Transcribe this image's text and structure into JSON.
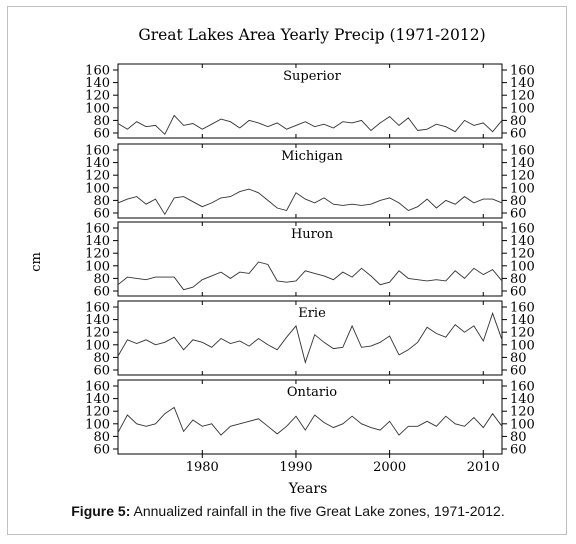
{
  "chart_data": {
    "type": "line",
    "title": "Great Lakes Area Yearly Precip (1971-2012)",
    "xlabel": "Years",
    "ylabel": "cm",
    "x_ticks": [
      1980,
      1990,
      2000,
      2010
    ],
    "xlim": [
      1971,
      2012
    ],
    "grid": false,
    "years": [
      1971,
      1972,
      1973,
      1974,
      1975,
      1976,
      1977,
      1978,
      1979,
      1980,
      1981,
      1982,
      1983,
      1984,
      1985,
      1986,
      1987,
      1988,
      1989,
      1990,
      1991,
      1992,
      1993,
      1994,
      1995,
      1996,
      1997,
      1998,
      1999,
      2000,
      2001,
      2002,
      2003,
      2004,
      2005,
      2006,
      2007,
      2008,
      2009,
      2010,
      2011,
      2012
    ],
    "panels": [
      {
        "name": "Superior",
        "ylim": [
          60,
          160
        ],
        "y_ticks": [
          60,
          80,
          100,
          120,
          140,
          160
        ],
        "values": [
          75,
          66,
          78,
          70,
          72,
          58,
          88,
          72,
          75,
          66,
          74,
          82,
          78,
          68,
          80,
          76,
          70,
          76,
          66,
          72,
          78,
          70,
          74,
          68,
          78,
          76,
          80,
          64,
          76,
          86,
          72,
          84,
          64,
          66,
          74,
          70,
          62,
          80,
          72,
          76,
          62,
          80
        ]
      },
      {
        "name": "Michigan",
        "ylim": [
          60,
          160
        ],
        "y_ticks": [
          60,
          80,
          100,
          120,
          140,
          160
        ],
        "values": [
          76,
          82,
          86,
          74,
          82,
          58,
          84,
          86,
          78,
          70,
          76,
          84,
          86,
          94,
          98,
          92,
          80,
          68,
          64,
          92,
          82,
          76,
          84,
          74,
          72,
          74,
          72,
          74,
          80,
          84,
          76,
          64,
          70,
          82,
          68,
          80,
          74,
          86,
          76,
          82,
          82,
          76
        ]
      },
      {
        "name": "Huron",
        "ylim": [
          60,
          160
        ],
        "y_ticks": [
          60,
          80,
          100,
          120,
          140,
          160
        ],
        "values": [
          70,
          82,
          80,
          78,
          82,
          82,
          82,
          62,
          66,
          78,
          84,
          90,
          80,
          90,
          88,
          106,
          102,
          76,
          74,
          76,
          92,
          88,
          84,
          78,
          90,
          82,
          96,
          84,
          70,
          74,
          92,
          80,
          78,
          76,
          78,
          76,
          92,
          80,
          96,
          86,
          94,
          76
        ]
      },
      {
        "name": "Erie",
        "ylim": [
          60,
          160
        ],
        "y_ticks": [
          60,
          80,
          100,
          120,
          140,
          160
        ],
        "values": [
          82,
          108,
          102,
          108,
          100,
          104,
          112,
          92,
          108,
          104,
          96,
          110,
          102,
          106,
          98,
          110,
          100,
          92,
          112,
          130,
          72,
          116,
          104,
          94,
          96,
          130,
          96,
          98,
          104,
          114,
          84,
          92,
          104,
          128,
          118,
          112,
          132,
          120,
          130,
          106,
          150,
          108
        ]
      },
      {
        "name": "Ontario",
        "ylim": [
          60,
          160
        ],
        "y_ticks": [
          60,
          80,
          100,
          120,
          140,
          160
        ],
        "values": [
          86,
          114,
          100,
          96,
          100,
          116,
          126,
          88,
          106,
          96,
          100,
          82,
          96,
          100,
          104,
          108,
          96,
          84,
          96,
          112,
          90,
          114,
          102,
          94,
          100,
          112,
          100,
          94,
          90,
          104,
          82,
          96,
          96,
          104,
          96,
          112,
          100,
          96,
          110,
          94,
          116,
          96
        ]
      }
    ]
  },
  "caption": {
    "label": "Figure 5:",
    "text": " Annualized rainfall in the five Great Lake zones, 1971-2012."
  }
}
